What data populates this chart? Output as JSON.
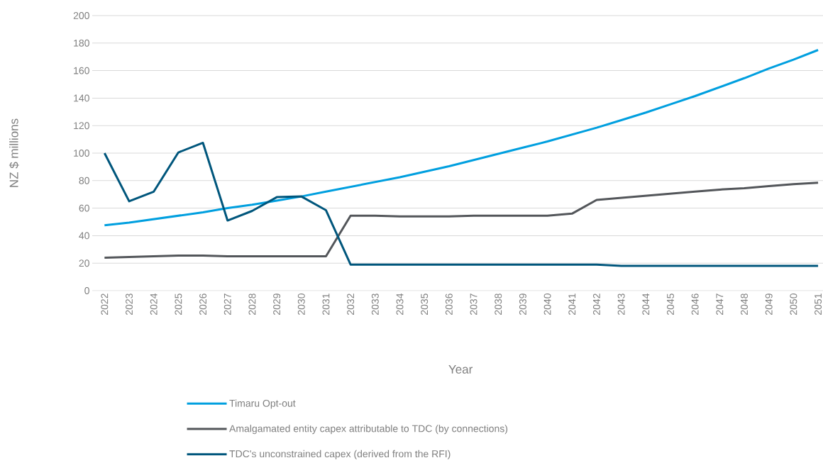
{
  "chart_data": {
    "type": "line",
    "xlabel": "Year",
    "ylabel": "NZ $ millions",
    "categories": [
      "2022",
      "2023",
      "2024",
      "2025",
      "2026",
      "2027",
      "2028",
      "2029",
      "2030",
      "2031",
      "2032",
      "2033",
      "2034",
      "2035",
      "2036",
      "2037",
      "2038",
      "2039",
      "2040",
      "2041",
      "2042",
      "2043",
      "2044",
      "2045",
      "2046",
      "2047",
      "2048",
      "2049",
      "2050",
      "2051"
    ],
    "series": [
      {
        "name": "Timaru Opt-out",
        "color": "#009fdf",
        "values": [
          47.5,
          49.5,
          52,
          54.5,
          57,
          60,
          62.5,
          65.5,
          68.5,
          72,
          75.5,
          79,
          82.5,
          86.5,
          90.5,
          95,
          99.5,
          104,
          108.5,
          113.5,
          118.5,
          124,
          129.5,
          135.5,
          141.5,
          148,
          154.5,
          161.5,
          168,
          175
        ]
      },
      {
        "name": "Amalgamated entity capex attributable to TDC (by connections)",
        "color": "#53565a",
        "values": [
          24,
          24.5,
          25,
          25.5,
          25.5,
          25,
          25,
          25,
          25,
          25,
          54.5,
          54.5,
          54,
          54,
          54,
          54.5,
          54.5,
          54.5,
          54.5,
          56,
          66,
          67.5,
          69,
          70.5,
          72,
          73.5,
          74.5,
          76,
          77.5,
          78.5
        ]
      },
      {
        "name": "TDC's unconstrained capex (derived from the RFI)",
        "color": "#00567c",
        "values": [
          100,
          65,
          72,
          100.5,
          107.5,
          51,
          58,
          68,
          68.5,
          58.5,
          19,
          19,
          19,
          19,
          19,
          19,
          19,
          19,
          19,
          19,
          19,
          18,
          18,
          18,
          18,
          18,
          18,
          18,
          18,
          18
        ]
      }
    ],
    "ylim": [
      0,
      200
    ],
    "yticks": [
      0,
      20,
      40,
      60,
      80,
      100,
      120,
      140,
      160,
      180,
      200
    ],
    "grid": "y",
    "legend": "bottom",
    "marker": "none",
    "line_style": "solid"
  }
}
